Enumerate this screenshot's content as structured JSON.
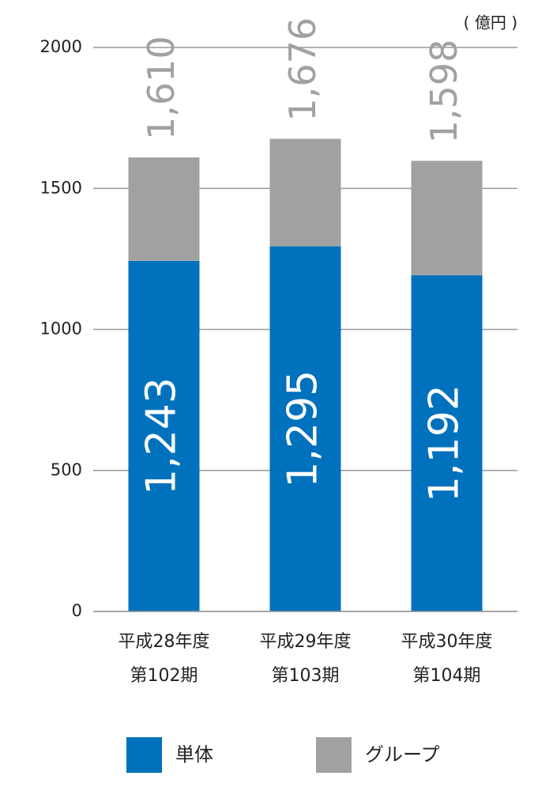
{
  "chart_data": {
    "type": "stacked-bar",
    "y_unit": "( 億円 )",
    "categories": [
      [
        "平成28年度",
        "第102期"
      ],
      [
        "平成29年度",
        "第103期"
      ],
      [
        "平成30年度",
        "第104期"
      ]
    ],
    "series": [
      {
        "name": "単体",
        "color": "#0071bc",
        "values": [
          1243,
          1295,
          1192
        ],
        "value_labels": [
          "1,243",
          "1,295",
          "1,192"
        ]
      },
      {
        "name": "グループ",
        "color": "#a0a2a2",
        "values": [
          367,
          381,
          406
        ]
      }
    ],
    "totals": {
      "values": [
        1610,
        1676,
        1598
      ],
      "value_labels": [
        "1,610",
        "1,676",
        "1,598"
      ],
      "color": "#a0a2a2"
    },
    "ylim": [
      0,
      2000
    ],
    "yticks": [
      0,
      500,
      1000,
      1500,
      2000
    ],
    "grid": true
  }
}
